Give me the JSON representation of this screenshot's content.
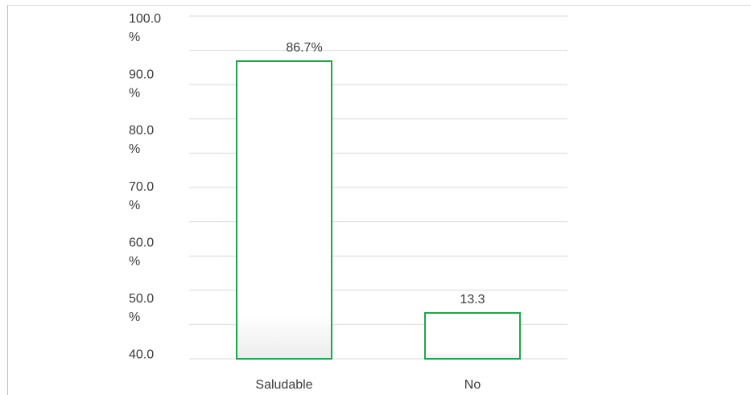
{
  "chart_data": {
    "type": "bar",
    "categories": [
      "Saludable",
      "No"
    ],
    "values": [
      86.7,
      13.3
    ],
    "data_labels": [
      "86.7%",
      "13.3"
    ],
    "ylim": [
      40,
      100
    ],
    "y_ticks": [
      {
        "line1": "100.0",
        "line2": "%"
      },
      {
        "line1": "90.0",
        "line2": "%"
      },
      {
        "line1": "80.0",
        "line2": "%"
      },
      {
        "line1": "70.0",
        "line2": "%"
      },
      {
        "line1": "60.0",
        "line2": "%"
      },
      {
        "line1": "50.0",
        "line2": "%"
      },
      {
        "line1": "40.0",
        "line2": ""
      }
    ],
    "title": "",
    "xlabel": "",
    "ylabel": "",
    "grid": true,
    "legend": "none",
    "bar_fill": "#ffffff",
    "bar_stroke": "#1fa64a",
    "grid_color": "#d9d9d9"
  }
}
